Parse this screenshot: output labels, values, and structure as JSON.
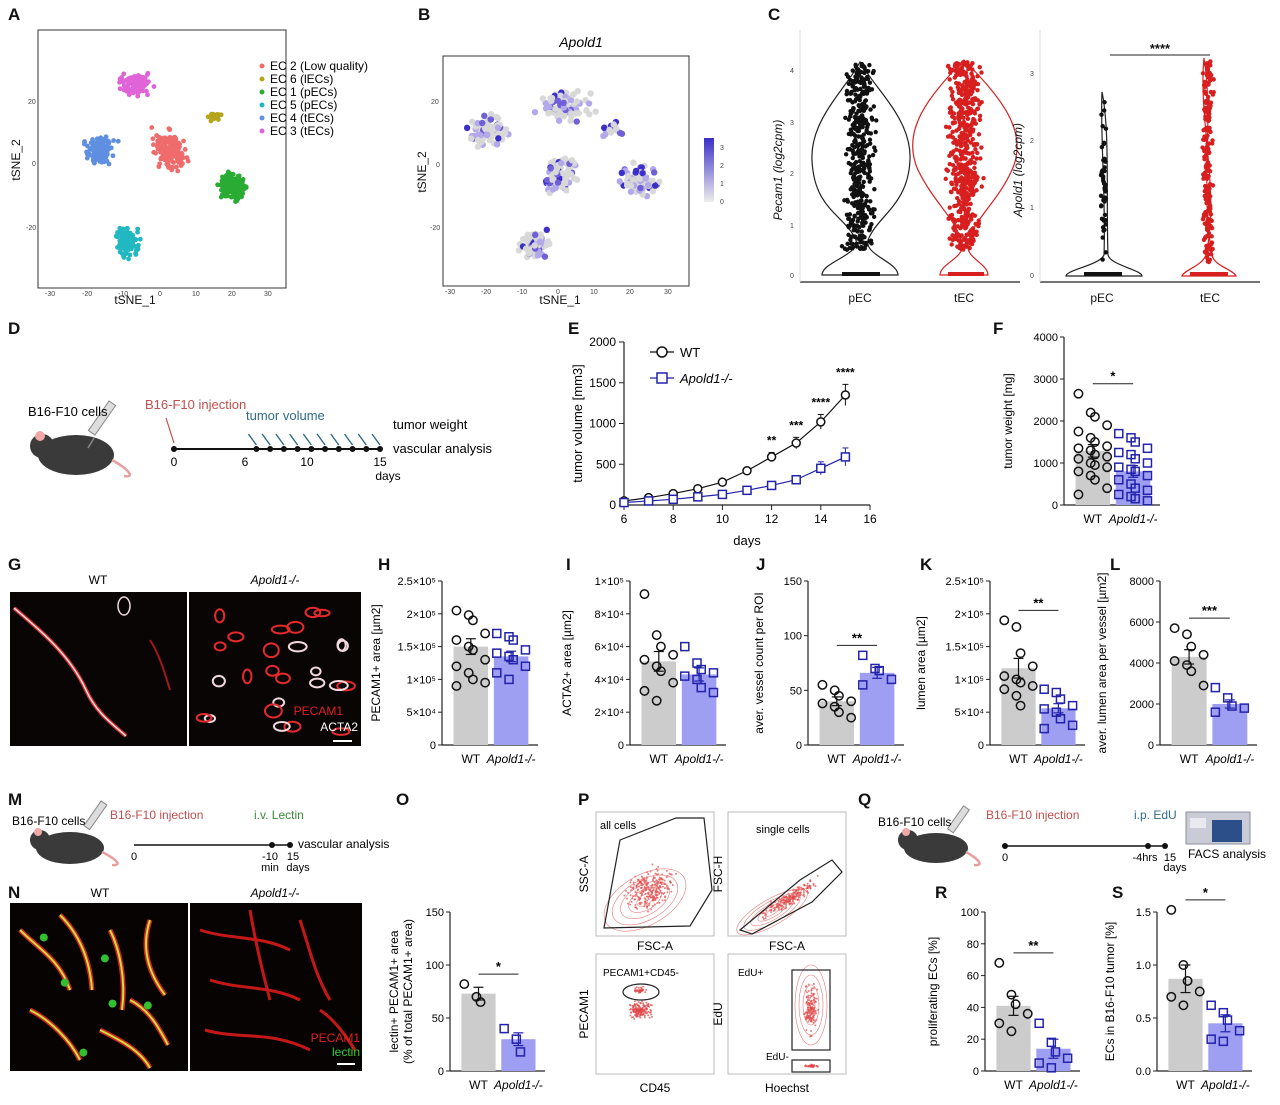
{
  "panels": {
    "A": "A",
    "B": "B",
    "C": "C",
    "D": "D",
    "E": "E",
    "F": "F",
    "G": "G",
    "H": "H",
    "I": "I",
    "J": "J",
    "K": "K",
    "L": "L",
    "M": "M",
    "N": "N",
    "O": "O",
    "P": "P",
    "Q": "Q",
    "R": "R",
    "S": "S"
  },
  "colors": {
    "wt_bar": "#cccccc",
    "ko_bar": "#9e9ef2",
    "wt_marker": "#111111",
    "ko_marker": "#2222aa",
    "tec_red": "#d81f1f",
    "purple": "#6b5bd2"
  },
  "panel_A": {
    "xlabel": "tSNE_1",
    "ylabel": "tSNE_2",
    "xticks": [
      "-30",
      "-20",
      "-10",
      "0",
      "10",
      "20",
      "30"
    ],
    "yticks": [
      "20",
      "0",
      "-20"
    ],
    "legend": [
      {
        "label": "EC 2 (Low quality)",
        "color": "#f06b6b"
      },
      {
        "label": "EC 6 (lECs)",
        "color": "#b5a51a"
      },
      {
        "label": "EC 1 (pECs)",
        "color": "#2aac34"
      },
      {
        "label": "EC 5 (pECs)",
        "color": "#22b8c2"
      },
      {
        "label": "EC 4 (tECs)",
        "color": "#5e8fe0"
      },
      {
        "label": "EC 3 (tECs)",
        "color": "#e064d8"
      }
    ]
  },
  "panel_B": {
    "title": "Apold1",
    "xlabel": "tSNE_1",
    "ylabel": "tSNE_2",
    "xticks": [
      "-30",
      "-20",
      "-10",
      "0",
      "10",
      "20",
      "30"
    ],
    "yticks": [
      "20",
      "0",
      "-20"
    ],
    "colorbar_ticks": [
      "3",
      "2",
      "1",
      "0"
    ]
  },
  "panel_C": {
    "left_ylabel": "Pecam1 (log2cpm)",
    "right_ylabel": "Apold1 (log2cpm)",
    "categories": [
      "pEC",
      "tEC"
    ],
    "left_yticks": [
      "4",
      "3",
      "2",
      "1",
      "0"
    ],
    "right_yticks": [
      "3",
      "2",
      "1",
      "0"
    ],
    "sig": "****"
  },
  "panel_D": {
    "cells": "B16-F10 cells",
    "injection": "B16-F10 injection",
    "tumor_volume": "tumor volume",
    "tumor_weight": "tumor weight",
    "vascular": "vascular analysis",
    "ticks": [
      "0",
      "6",
      "10",
      "15"
    ],
    "unit": "days"
  },
  "chart_data": [
    {
      "id": "E",
      "type": "line",
      "xlabel": "days",
      "ylabel": "tumor volume [mm3]",
      "x": [
        6,
        7,
        8,
        9,
        10,
        11,
        12,
        13,
        14,
        15
      ],
      "xlim": [
        6,
        16
      ],
      "ylim": [
        0,
        2000
      ],
      "xticks": [
        "6",
        "8",
        "10",
        "12",
        "14",
        "16"
      ],
      "yticks": [
        "0",
        "500",
        "1000",
        "1500",
        "2000"
      ],
      "series": [
        {
          "name": "WT",
          "values": [
            50,
            90,
            140,
            200,
            280,
            420,
            590,
            760,
            1020,
            1350
          ],
          "err": [
            15,
            20,
            25,
            30,
            35,
            40,
            55,
            70,
            90,
            130
          ]
        },
        {
          "name": "Apold1-/-",
          "values": [
            30,
            50,
            70,
            100,
            130,
            180,
            240,
            310,
            450,
            590
          ],
          "err": [
            10,
            12,
            15,
            20,
            25,
            30,
            40,
            50,
            80,
            110
          ]
        }
      ],
      "sig_x": [
        12,
        13,
        14,
        15
      ],
      "sig_labels": [
        "**",
        "***",
        "****",
        "****"
      ]
    },
    {
      "id": "F",
      "type": "bar",
      "ylabel": "tumor weight [mg]",
      "categories": [
        "WT",
        "Apold1-/-"
      ],
      "values": [
        1290,
        800
      ],
      "err": [
        150,
        140
      ],
      "ylim": [
        0,
        4000
      ],
      "yticks": [
        "0",
        "1000",
        "2000",
        "3000",
        "4000"
      ],
      "sig": "*",
      "points": [
        [
          2650,
          2200,
          2100,
          1900,
          1750,
          1600,
          1500,
          1400,
          1350,
          1300,
          1200,
          1150,
          1100,
          1000,
          950,
          900,
          800,
          700,
          600,
          400,
          250
        ],
        [
          1700,
          1600,
          1500,
          1350,
          1250,
          1200,
          1100,
          1000,
          900,
          850,
          800,
          700,
          600,
          500,
          400,
          350,
          250,
          200,
          150,
          100
        ]
      ]
    },
    {
      "id": "H",
      "type": "bar",
      "ylabel": "PECAM1+ area [µm2]",
      "categories": [
        "WT",
        "Apold1-/-"
      ],
      "values": [
        150000,
        135000
      ],
      "err": [
        12000,
        8000
      ],
      "ylim": [
        0,
        250000
      ],
      "yticks": [
        "0",
        "5×10⁴",
        "1×10⁵",
        "1.5×10⁵",
        "2×10⁵",
        "2.5×10⁵"
      ],
      "sig": "",
      "points": [
        [
          205000,
          198000,
          190000,
          170000,
          160000,
          150000,
          145000,
          130000,
          120000,
          110000,
          100000,
          95000,
          90000
        ],
        [
          170000,
          165000,
          160000,
          145000,
          140000,
          135000,
          130000,
          120000,
          110000,
          100000
        ]
      ]
    },
    {
      "id": "I",
      "type": "bar",
      "ylabel": "ACTA2+ area [µm2]",
      "categories": [
        "WT",
        "Apold1-/-"
      ],
      "values": [
        51000,
        43000
      ],
      "err": [
        6000,
        4000
      ],
      "ylim": [
        0,
        100000
      ],
      "yticks": [
        "0",
        "2×10⁴",
        "4×10⁴",
        "6×10⁴",
        "8×10⁴",
        "1×10⁵"
      ],
      "sig": "",
      "points": [
        [
          92000,
          67000,
          60000,
          55000,
          52000,
          48000,
          45000,
          38000,
          33000,
          27000
        ],
        [
          60000,
          50000,
          46000,
          44000,
          42000,
          40000,
          35000,
          32000
        ]
      ]
    },
    {
      "id": "J",
      "type": "bar",
      "ylabel": "aver. vessel count per ROI",
      "categories": [
        "WT",
        "Apold1-/-"
      ],
      "values": [
        40,
        66
      ],
      "err": [
        4,
        5
      ],
      "ylim": [
        0,
        150
      ],
      "yticks": [
        "0",
        "50",
        "100",
        "150"
      ],
      "sig": "**",
      "points": [
        [
          55,
          50,
          45,
          40,
          38,
          35,
          30,
          25
        ],
        [
          82,
          70,
          68,
          60,
          55
        ]
      ]
    },
    {
      "id": "K",
      "type": "bar",
      "ylabel": "lumen area [µm2]",
      "categories": [
        "WT",
        "Apold1-/-"
      ],
      "values": [
        117000,
        56000
      ],
      "err": [
        15000,
        7000
      ],
      "ylim": [
        0,
        250000
      ],
      "yticks": [
        "0",
        "5×10⁴",
        "1×10⁵",
        "1.5×10⁵",
        "2×10⁵",
        "2.5×10⁵"
      ],
      "sig": "**",
      "points": [
        [
          190000,
          180000,
          140000,
          120000,
          105000,
          100000,
          95000,
          90000,
          85000,
          75000,
          60000
        ],
        [
          85000,
          80000,
          70000,
          60000,
          55000,
          50000,
          40000,
          30000,
          25000
        ]
      ]
    },
    {
      "id": "L",
      "type": "bar",
      "ylabel": "aver. lumen area per vessel [µm2]",
      "categories": [
        "WT",
        "Apold1-/-"
      ],
      "values": [
        4300,
        2000
      ],
      "err": [
        350,
        200
      ],
      "ylim": [
        0,
        8000
      ],
      "yticks": [
        "0",
        "2000",
        "4000",
        "6000",
        "8000"
      ],
      "sig": "***",
      "points": [
        [
          5700,
          5400,
          4800,
          4400,
          4100,
          3900,
          3600,
          2900
        ],
        [
          2800,
          2300,
          1900,
          1800,
          1600
        ]
      ]
    },
    {
      "id": "O",
      "type": "bar",
      "ylabel": "lectin+ PECAM1+ area",
      "ylabel2": "(% of total PECAM1+ area)",
      "categories": [
        "WT",
        "Apold1-/-"
      ],
      "values": [
        73,
        30
      ],
      "err": [
        6,
        6
      ],
      "ylim": [
        0,
        150
      ],
      "yticks": [
        "0",
        "50",
        "100",
        "150"
      ],
      "sig": "*",
      "points": [
        [
          82,
          70,
          65
        ],
        [
          40,
          30,
          18
        ]
      ]
    },
    {
      "id": "R",
      "type": "bar",
      "ylabel": "proliferating ECs [%]",
      "categories": [
        "WT",
        "Apold1-/-"
      ],
      "values": [
        41,
        14
      ],
      "err": [
        6,
        6
      ],
      "ylim": [
        0,
        100
      ],
      "yticks": [
        "0",
        "20",
        "40",
        "60",
        "80",
        "100"
      ],
      "sig": "**",
      "points": [
        [
          68,
          48,
          42,
          36,
          30,
          25
        ],
        [
          30,
          18,
          12,
          8,
          5,
          2
        ]
      ]
    },
    {
      "id": "S",
      "type": "bar",
      "ylabel": "ECs in B16-F10 tumor [%]",
      "categories": [
        "WT",
        "Apold1-/-"
      ],
      "values": [
        0.87,
        0.45
      ],
      "err": [
        0.13,
        0.08
      ],
      "ylim": [
        0,
        1.5
      ],
      "yticks": [
        "0.0",
        "0.5",
        "1.0",
        "1.5"
      ],
      "sig": "*",
      "points": [
        [
          1.52,
          1.0,
          0.85,
          0.75,
          0.7,
          0.62
        ],
        [
          0.62,
          0.55,
          0.48,
          0.38,
          0.3,
          0.28
        ]
      ]
    }
  ],
  "legend_E": {
    "wt": "WT",
    "ko": "Apold1-/-"
  },
  "panel_G": {
    "wt": "WT",
    "ko": "Apold1-/-",
    "stain1": "PECAM1",
    "stain2": "ACTA2"
  },
  "panel_M": {
    "cells": "B16-F10 cells",
    "injection": "B16-F10 injection",
    "lectin": "i.v. Lectin",
    "vascular": "vascular analysis",
    "ticks": [
      "0",
      "-10",
      "15"
    ],
    "unit1": "min",
    "unit2": "days"
  },
  "panel_N": {
    "wt": "WT",
    "ko": "Apold1-/-",
    "stain1": "PECAM1",
    "stain2": "lectin"
  },
  "panel_P": {
    "g1_label": "all cells",
    "g1_x": "FSC-A",
    "g1_y": "SSC-A",
    "g2_label": "single cells",
    "g2_x": "FSC-A",
    "g2_y": "FSC-H",
    "g3_label": "PECAM1+CD45-",
    "g3_x": "CD45",
    "g3_y": "PECAM1",
    "g4_label_pos": "EdU+",
    "g4_label_neg": "EdU-",
    "g4_x": "Hoechst",
    "g4_y": "EdU"
  },
  "panel_Q": {
    "cells": "B16-F10 cells",
    "injection": "B16-F10 injection",
    "edu": "i.p. EdU",
    "ticks": [
      "0",
      "-4hrs",
      "15"
    ],
    "unit": "days",
    "facs": "FACS analysis"
  }
}
